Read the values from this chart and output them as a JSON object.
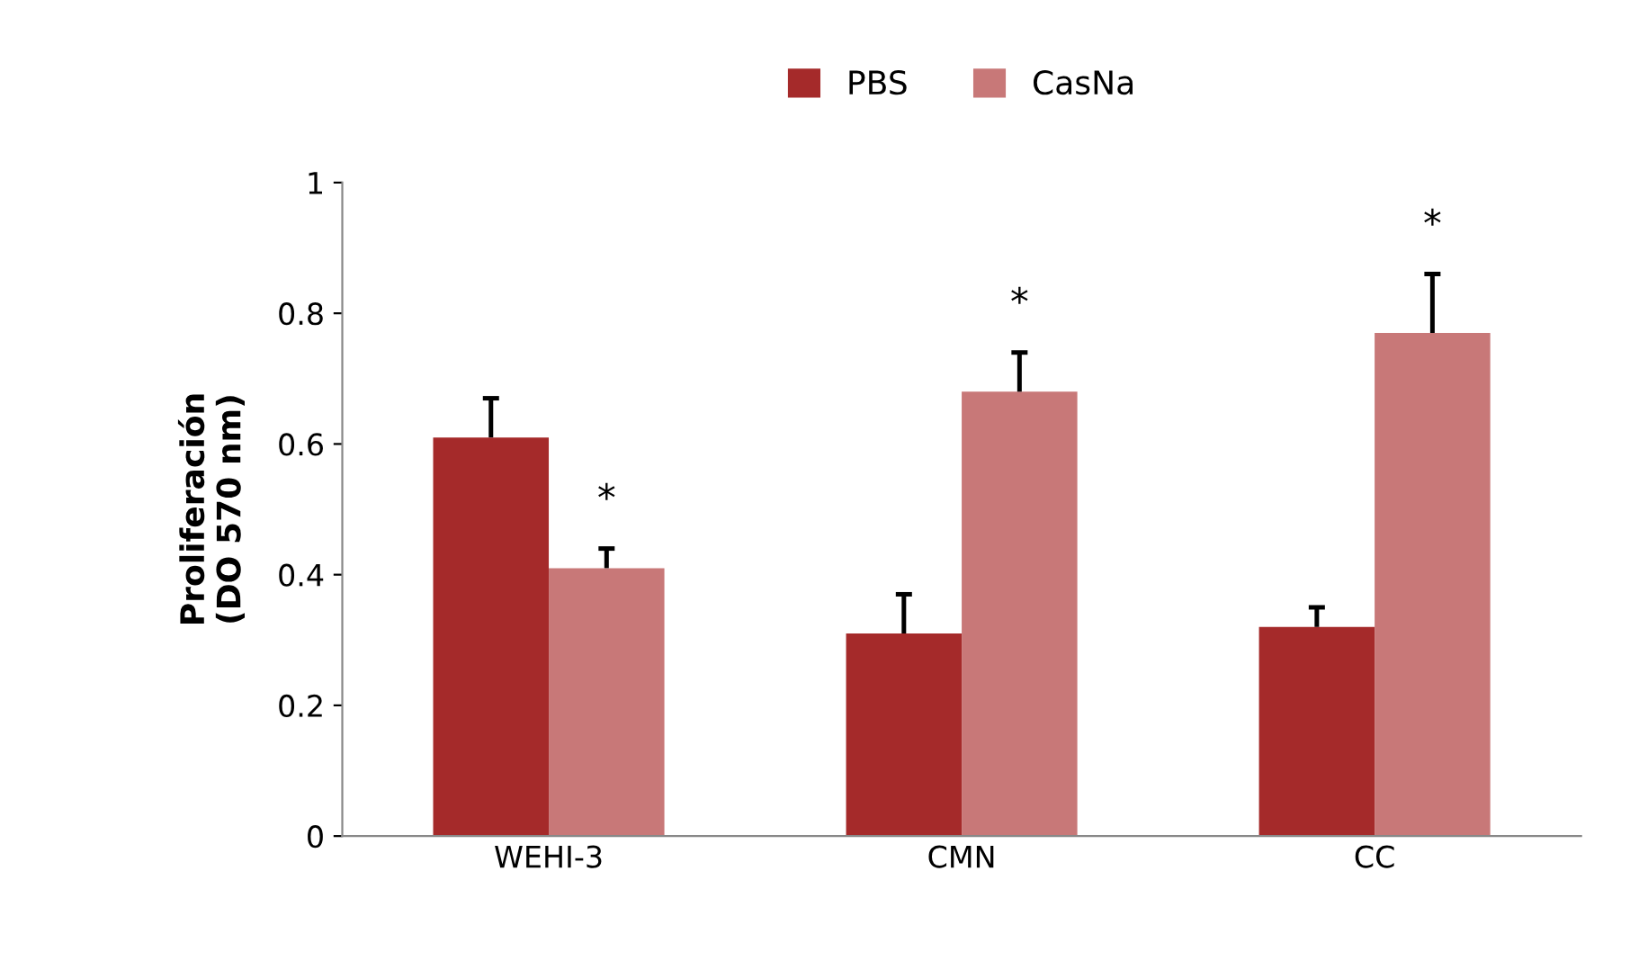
{
  "chart_data": {
    "type": "bar",
    "ylabel": "Proliferación\n(DO 570 nm)",
    "categories": [
      "WEHI-3",
      "CMN",
      "CC"
    ],
    "series": [
      {
        "name": "PBS",
        "color": "#a52a2a",
        "values": [
          0.61,
          0.31,
          0.32
        ],
        "errors": [
          [
            0.61,
            0.67
          ],
          [
            0.31,
            0.37
          ],
          [
            0.32,
            0.35
          ]
        ]
      },
      {
        "name": "CasNa",
        "color": "#c87878",
        "values": [
          0.41,
          0.68,
          0.77
        ],
        "errors": [
          [
            0.41,
            0.44
          ],
          [
            0.68,
            0.74
          ],
          [
            0.77,
            0.86
          ]
        ]
      }
    ],
    "annotations": [
      "*",
      "*",
      "*"
    ],
    "ylim": [
      0,
      1
    ],
    "yticks": [
      0,
      0.2,
      0.4,
      0.6,
      0.8,
      1
    ],
    "grid": false,
    "legend": "top"
  }
}
